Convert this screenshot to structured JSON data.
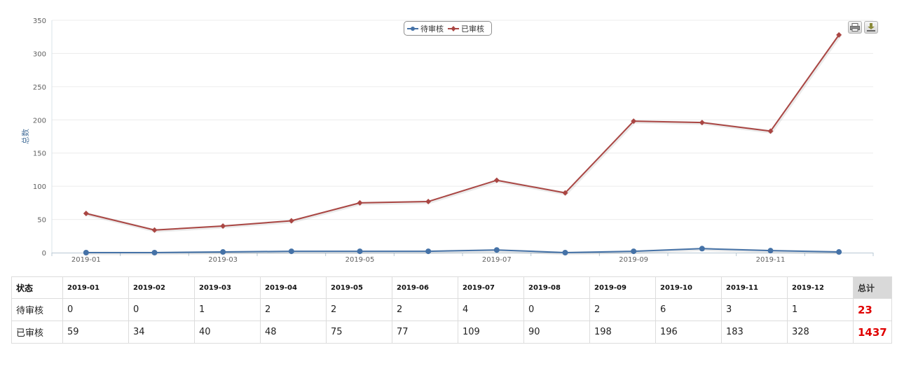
{
  "chart_data": {
    "type": "line",
    "title": "",
    "xlabel": "",
    "ylabel": "总数",
    "ylim": [
      0,
      350
    ],
    "yticks": [
      0,
      50,
      100,
      150,
      200,
      250,
      300,
      350
    ],
    "categories": [
      "2019-01",
      "2019-02",
      "2019-03",
      "2019-04",
      "2019-05",
      "2019-06",
      "2019-07",
      "2019-08",
      "2019-09",
      "2019-10",
      "2019-11",
      "2019-12"
    ],
    "x_tick_labels": [
      "2019-01",
      "2019-03",
      "2019-05",
      "2019-07",
      "2019-09",
      "2019-11"
    ],
    "legend_placement": "top-center",
    "grid": true,
    "series": [
      {
        "name": "待审核",
        "color": "#4572A7",
        "marker": "circle",
        "values": [
          0,
          0,
          1,
          2,
          2,
          2,
          4,
          0,
          2,
          6,
          3,
          1
        ]
      },
      {
        "name": "已审核",
        "color": "#AA4643",
        "marker": "diamond",
        "values": [
          59,
          34,
          40,
          48,
          75,
          77,
          109,
          90,
          198,
          196,
          183,
          328
        ]
      }
    ]
  },
  "toolbar": {
    "print_icon": "print-icon",
    "export_icon": "download-icon"
  },
  "table": {
    "status_header": "状态",
    "months": [
      "2019-01",
      "2019-02",
      "2019-03",
      "2019-04",
      "2019-05",
      "2019-06",
      "2019-07",
      "2019-08",
      "2019-09",
      "2019-10",
      "2019-11",
      "2019-12"
    ],
    "total_header": "总计",
    "rows": [
      {
        "label": "待审核",
        "values": [
          "0",
          "0",
          "1",
          "2",
          "2",
          "2",
          "4",
          "0",
          "2",
          "6",
          "3",
          "1"
        ],
        "total": "23"
      },
      {
        "label": "已审核",
        "values": [
          "59",
          "34",
          "40",
          "48",
          "75",
          "77",
          "109",
          "90",
          "198",
          "196",
          "183",
          "328"
        ],
        "total": "1437"
      }
    ]
  }
}
